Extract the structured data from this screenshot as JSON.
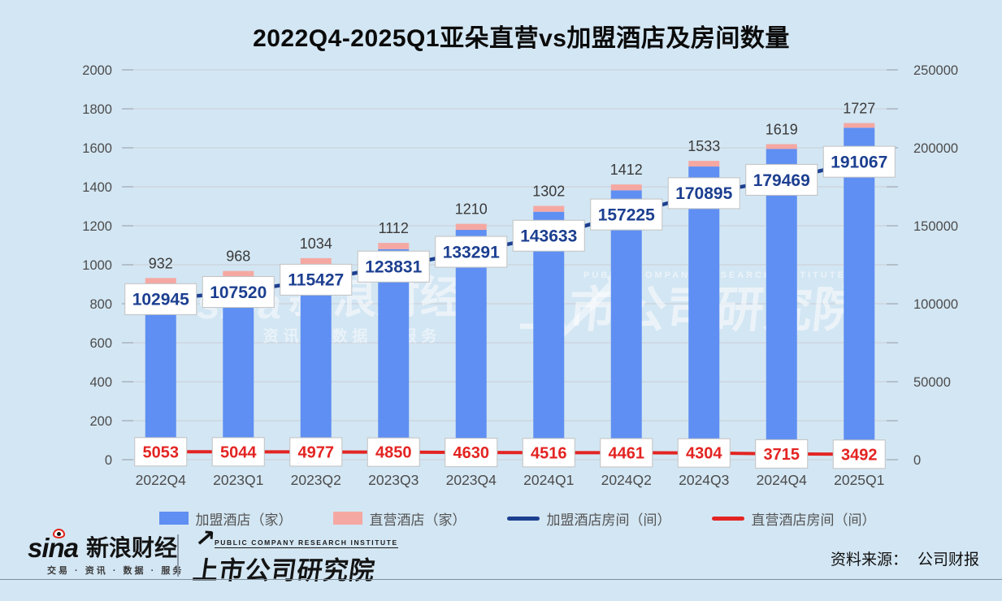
{
  "chart_data": {
    "type": "bar-line-combo",
    "title": "2022Q4-2025Q1亚朵直营vs加盟酒店及房间数量",
    "categories": [
      "2022Q4",
      "2023Q1",
      "2023Q2",
      "2023Q3",
      "2023Q4",
      "2024Q1",
      "2024Q2",
      "2024Q3",
      "2024Q4",
      "2025Q1"
    ],
    "bar_total_labels": [
      932,
      968,
      1034,
      1112,
      1210,
      1302,
      1412,
      1533,
      1619,
      1727
    ],
    "series": [
      {
        "name": "加盟酒店（家）",
        "type": "bar-stacked",
        "axis": "left",
        "color": "#5f8ff2",
        "values": [
          898,
          934,
          1001,
          1080,
          1179,
          1272,
          1382,
          1504,
          1594,
          1703
        ]
      },
      {
        "name": "直营酒店（家）",
        "type": "bar-stacked",
        "axis": "left",
        "color": "#f5a8a2",
        "values": [
          34,
          34,
          33,
          32,
          31,
          30,
          30,
          29,
          25,
          24
        ]
      },
      {
        "name": "加盟酒店房间（间）",
        "type": "line",
        "axis": "right",
        "color": "#1c3f90",
        "values": [
          102945,
          107520,
          115427,
          123831,
          133291,
          143633,
          157225,
          170895,
          179469,
          191067
        ]
      },
      {
        "name": "直营酒店房间（间）",
        "type": "line",
        "axis": "right",
        "color": "#e32422",
        "values": [
          5053,
          5044,
          4977,
          4850,
          4630,
          4516,
          4461,
          4304,
          3715,
          3492
        ]
      }
    ],
    "left_axis": {
      "min": 0,
      "max": 2000,
      "step": 200
    },
    "right_axis": {
      "min": 0,
      "max": 250000,
      "label_step": 50000
    },
    "grid": true,
    "legend_position": "bottom"
  },
  "legend": {
    "items": [
      {
        "label": "加盟酒店（家）",
        "marker": "rect",
        "color": "#5f8ff2"
      },
      {
        "label": "直营酒店（家）",
        "marker": "rect",
        "color": "#f5a8a2"
      },
      {
        "label": "加盟酒店房间（间）",
        "marker": "line",
        "color": "#1c3f90"
      },
      {
        "label": "直营酒店房间（间）",
        "marker": "line",
        "color": "#e32422"
      }
    ]
  },
  "watermarks": {
    "sina_word": "sina",
    "sina_text": "新浪财经",
    "sina_sub": "· 资讯 ·  数据 ·  服务",
    "pcri_en": "PUBLIC COMPANY RESEARCH INSTITUTE",
    "pcri_text": "上市公司研究院"
  },
  "footer": {
    "sina_word": "sina",
    "sina_brand": "新浪财经",
    "sina_tagline": "交易 · 资讯 · 数据 · 服务",
    "pcri_en": "PUBLIC COMPANY RESEARCH INSTITUTE",
    "pcri_name": "上市公司研究院",
    "pcri_arrow": "↗",
    "source_label": "资料来源：",
    "source_value": "公司财报"
  },
  "colors": {
    "background": "#d3e6f3",
    "gridline": "#c9ced5",
    "tick": "#a6afba",
    "axis_text": "#4c4c4c",
    "bar_total_text": "#3a3a3a",
    "label_box_border": "#c2c2c2"
  }
}
